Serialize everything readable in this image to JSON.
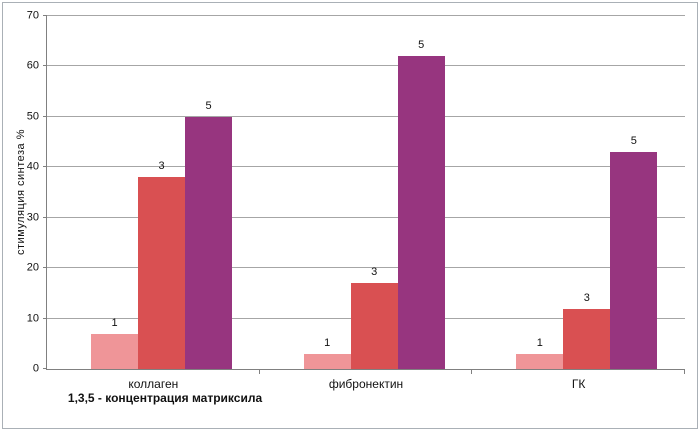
{
  "chart_data": {
    "type": "bar",
    "title": "",
    "ylabel": "стимуляция синтеза %",
    "xlabel": "1,3,5 - концентрация  матриксила",
    "ylim": [
      0,
      70
    ],
    "ytick_step": 10,
    "grid": true,
    "legend": "none",
    "categories": [
      "коллаген",
      "фибронектин",
      "ГК"
    ],
    "series": [
      {
        "name": "1",
        "color": "#EF9598",
        "values": [
          7,
          3,
          3
        ]
      },
      {
        "name": "3",
        "color": "#D95052",
        "values": [
          38,
          17,
          12
        ]
      },
      {
        "name": "5",
        "color": "#97357F",
        "values": [
          50,
          62,
          43
        ]
      }
    ],
    "bar_labels_visible": true
  },
  "colors": {
    "axis": "#808080",
    "grid": "#a6a6a6",
    "frame_border": "#aab0b6",
    "text": "#111111",
    "background": "#ffffff"
  }
}
